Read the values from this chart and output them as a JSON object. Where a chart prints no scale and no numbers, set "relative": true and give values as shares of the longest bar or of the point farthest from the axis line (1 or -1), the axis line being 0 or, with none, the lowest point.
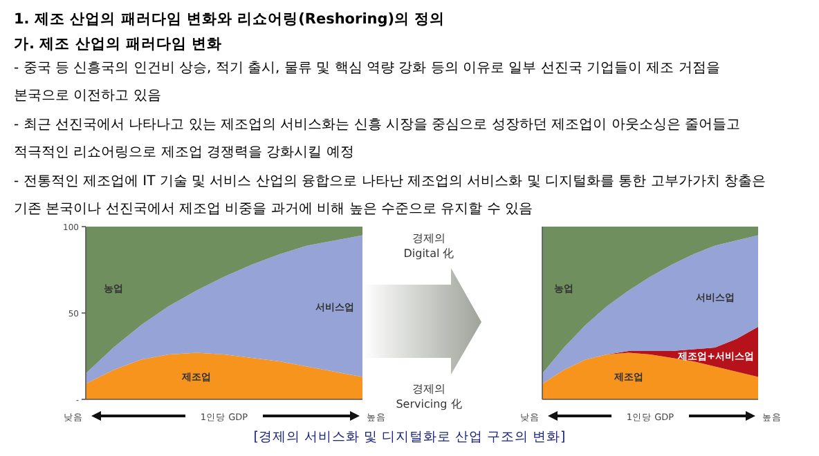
{
  "chart_data": [
    {
      "type": "other",
      "title": "1. 제조 산업의 패러다임 변화와 리쇼어링(Reshoring)의 정의",
      "subtitle": "가. 제조 산업의 패러다임 변화",
      "annotations": [
        "- 중국 등 신흥국의 인건비 상승, 적기 출시, 물류 및 핵심 역량 강화 등의 이유로 일부 선진국 기업들이 제조 거점을",
        "본국으로 이전하고 있음",
        "- 최근 선진국에서 나타나고 있는 제조업의 서비스화는 신흥 시장을 중심으로 성장하던 제조업이 아웃소싱은 줄어들고",
        "적극적인 리쇼어링으로 제조업 경쟁력을 강화시킬 예정",
        "- 전통적인 제조업에 IT 기술 및 서비스 산업의 융합으로 나타난 제조업의 서비스화 및 디지털화를 통한 고부가가치 창출은",
        "기존 본국이나 선진국에서 제조업 비중을 과거에 비해 높은 수준으로 유지할 수 있음"
      ]
    },
    {
      "type": "area",
      "stacked": true,
      "xlabel": "1인당 GDP",
      "annotations": [
        "낮음",
        "높음"
      ],
      "categories": [
        null,
        null,
        null,
        null,
        null,
        null,
        null,
        null,
        null,
        null,
        null
      ],
      "ylim": [
        0,
        100
      ],
      "yticks": [
        {
          "value": 0,
          "label": "-"
        },
        50,
        100
      ],
      "tick_labels": "y",
      "series": [
        {
          "name": "제조업",
          "color": "#f7941d",
          "values": [
            9,
            17,
            23,
            26,
            27,
            26,
            24,
            22,
            19,
            16,
            13
          ]
        },
        {
          "name": "서비스업",
          "color": "#95a3d6",
          "values": [
            6,
            13,
            20,
            28,
            36,
            45,
            54,
            62,
            70,
            76,
            82
          ]
        },
        {
          "name": "농업",
          "color": "#6f8f5f",
          "values": [
            85,
            70,
            57,
            46,
            37,
            29,
            22,
            16,
            11,
            8,
            5
          ]
        }
      ]
    },
    {
      "type": "area",
      "stacked": true,
      "xlabel": "1인당 GDP",
      "annotations": [
        "낮음",
        "높음"
      ],
      "categories": [
        null,
        null,
        null,
        null,
        null,
        null,
        null,
        null,
        null,
        null,
        null
      ],
      "relative": true,
      "series": [
        {
          "name": "제조업",
          "color": "#f7941d",
          "values": [
            0.09,
            0.17,
            0.23,
            0.26,
            0.27,
            0.26,
            0.24,
            0.22,
            0.19,
            0.16,
            0.13
          ]
        },
        {
          "name": "제조업+서비스업",
          "color": "#b5121b",
          "values": [
            0,
            0,
            0,
            0,
            0.01,
            0.02,
            0.04,
            0.07,
            0.11,
            0.19,
            0.29
          ]
        },
        {
          "name": "서비스업",
          "color": "#95a3d6",
          "values": [
            0.06,
            0.13,
            0.2,
            0.28,
            0.35,
            0.43,
            0.5,
            0.55,
            0.59,
            0.57,
            0.53
          ]
        },
        {
          "name": "농업",
          "color": "#6f8f5f",
          "values": [
            0.85,
            0.7,
            0.57,
            0.46,
            0.37,
            0.29,
            0.22,
            0.16,
            0.11,
            0.08,
            0.05
          ]
        }
      ]
    },
    {
      "type": "other",
      "annotations": [
        "경제의",
        "Digital 化",
        "경제의",
        "Servicing 化",
        "[경제의 서비스화 및 디지털화로 산업 구조의 변화]"
      ]
    }
  ]
}
